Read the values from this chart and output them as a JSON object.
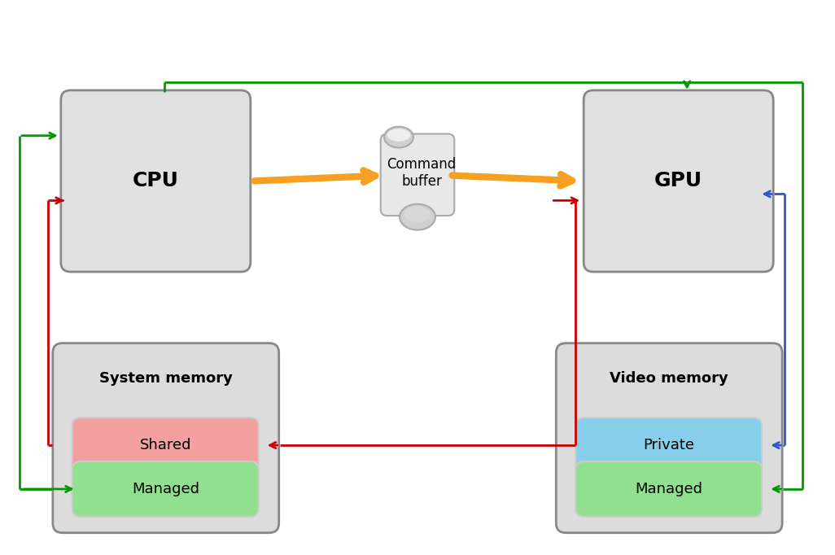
{
  "bg_color": "#ffffff",
  "chip_bg": "#e0e0e0",
  "chip_border": "#888888",
  "tooth_color": "#888888",
  "mem_bg": "#dcdcdc",
  "shared_color": "#f4a0a0",
  "managed_color": "#90e090",
  "private_color": "#87ceeb",
  "arrow_orange": "#f5a020",
  "arrow_red": "#cc0000",
  "arrow_green": "#009900",
  "arrow_blue": "#3355cc",
  "cpu_label": "CPU",
  "gpu_label": "GPU",
  "sys_mem_label": "System memory",
  "vid_mem_label": "Video memory",
  "shared_label": "Shared",
  "managed_label": "Managed",
  "private_label": "Private",
  "managed2_label": "Managed",
  "cmd_buf_label": "Command\nbuffer",
  "scroll_bg": "#e8e8e8",
  "scroll_border": "#aaaaaa",
  "scroll_roll": "#d0d0d0"
}
